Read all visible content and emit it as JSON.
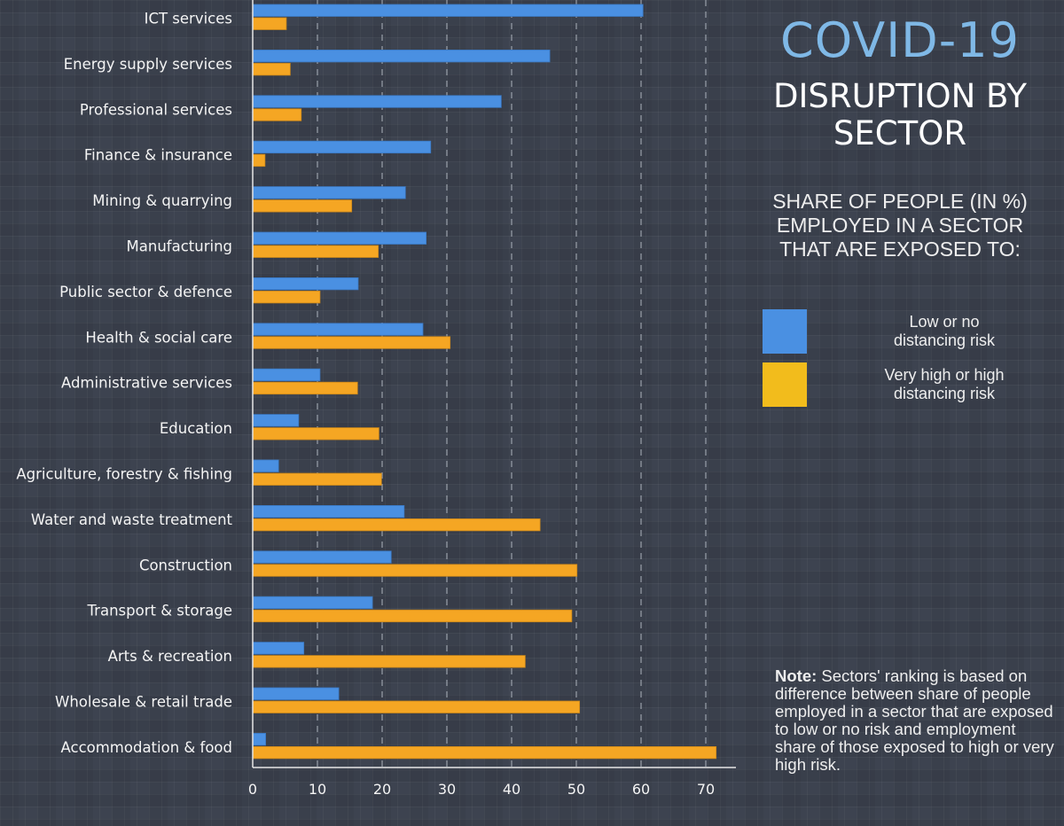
{
  "title": {
    "line1": "COVID-19",
    "line2": "DISRUPTION BY",
    "line3": "SECTOR"
  },
  "subtitle": {
    "line1": "SHARE OF PEOPLE (IN %)",
    "line2": "EMPLOYED IN A SECTOR",
    "line3": "THAT ARE EXPOSED TO:"
  },
  "legend": [
    {
      "line1": "Low or no",
      "line2": "distancing risk",
      "color": "#4a90e2"
    },
    {
      "line1": "Very high or high",
      "line2": "distancing risk",
      "color": "#f2bc1c"
    }
  ],
  "note": {
    "label": "Note:",
    "text": " Sectors' ranking is based on difference between share of people employed in a sector that are exposed to low or no risk and employment share of those exposed to high or very high risk."
  },
  "colors": {
    "low_risk": "#4a90e2",
    "high_risk": "#f5a623",
    "grid": "#9aa0aa",
    "axis": "#e6e6e6"
  },
  "chart_data": {
    "type": "bar",
    "orientation": "horizontal",
    "title": "COVID-19 Disruption by Sector",
    "xlabel": "",
    "ylabel": "",
    "xlim": [
      0,
      75
    ],
    "xticks": [
      0,
      10,
      20,
      30,
      40,
      50,
      60,
      70
    ],
    "grid": "vertical dashed",
    "legend_position": "right",
    "categories": [
      "ICT services",
      "Energy supply services",
      "Professional services",
      "Finance & insurance",
      "Mining & quarrying",
      "Manufacturing",
      "Public sector & defence",
      "Health & social care",
      "Administrative services",
      "Education",
      "Agriculture, forestry & fishing",
      "Water and waste treatment",
      "Construction",
      "Transport & storage",
      "Arts & recreation",
      "Wholesale & retail trade",
      "Accommodation & food"
    ],
    "series": [
      {
        "name": "Low or no distancing risk",
        "values": [
          60.3,
          45.9,
          38.4,
          27.5,
          23.6,
          26.8,
          16.3,
          26.3,
          10.4,
          7.1,
          4.0,
          23.4,
          21.4,
          18.5,
          7.9,
          13.3,
          2.0
        ]
      },
      {
        "name": "Very high or high distancing risk",
        "values": [
          5.2,
          5.8,
          7.5,
          1.9,
          15.3,
          19.4,
          10.4,
          30.5,
          16.2,
          19.5,
          19.9,
          44.4,
          50.1,
          49.3,
          42.1,
          50.5,
          71.6
        ]
      }
    ]
  }
}
